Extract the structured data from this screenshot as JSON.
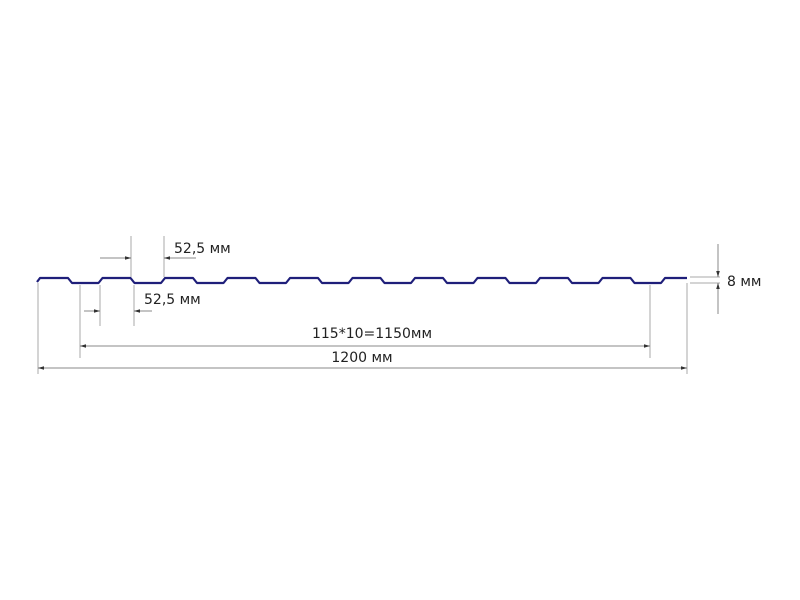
{
  "diagram": {
    "labels": {
      "pitch_top": "52,5 мм",
      "pitch_bottom": "52,5 мм",
      "height": "8 мм",
      "working_width": "115*10=1150мм",
      "total_width": "1200 мм"
    },
    "colors": {
      "profile": "#1f1f7a",
      "dimension_lines": "#999999",
      "text": "#222222"
    }
  }
}
